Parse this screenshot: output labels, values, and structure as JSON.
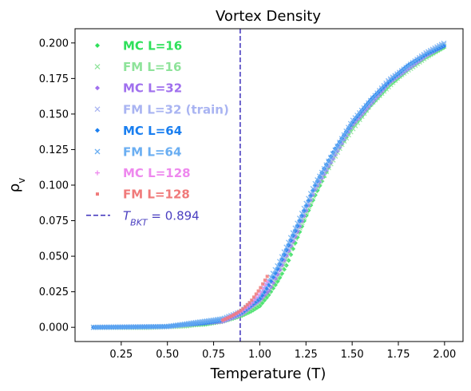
{
  "chart_data": {
    "type": "scatter",
    "title": "Vortex Density",
    "xlabel": "Temperature (T)",
    "ylabel": "ρ_v",
    "xlim": [
      0.0,
      2.1
    ],
    "ylim": [
      -0.01,
      0.21
    ],
    "xticks": [
      "0.25",
      "0.50",
      "0.75",
      "1.00",
      "1.25",
      "1.50",
      "1.75",
      "2.00"
    ],
    "xtick_values": [
      0.25,
      0.5,
      0.75,
      1.0,
      1.25,
      1.5,
      1.75,
      2.0
    ],
    "yticks": [
      "0.000",
      "0.025",
      "0.050",
      "0.075",
      "0.100",
      "0.125",
      "0.150",
      "0.175",
      "0.200"
    ],
    "ytick_values": [
      0.0,
      0.025,
      0.05,
      0.075,
      0.1,
      0.125,
      0.15,
      0.175,
      0.2
    ],
    "legend_placement": "upper-left",
    "vline": {
      "x": 0.894,
      "label": "T_BKT = 0.894",
      "color": "#4a3fc0"
    },
    "series": [
      {
        "name": "MC L=16",
        "marker": "diamond",
        "color": "#2ee05a",
        "points": [
          [
            0.1,
            0
          ],
          [
            0.3,
            0
          ],
          [
            0.5,
            0.0005
          ],
          [
            0.7,
            0.002
          ],
          [
            0.8,
            0.004
          ],
          [
            0.9,
            0.008
          ],
          [
            0.95,
            0.011
          ],
          [
            1.0,
            0.015
          ],
          [
            1.05,
            0.023
          ],
          [
            1.1,
            0.033
          ],
          [
            1.15,
            0.045
          ],
          [
            1.2,
            0.062
          ],
          [
            1.25,
            0.078
          ],
          [
            1.3,
            0.093
          ],
          [
            1.4,
            0.12
          ],
          [
            1.5,
            0.14
          ],
          [
            1.6,
            0.156
          ],
          [
            1.7,
            0.17
          ],
          [
            1.8,
            0.181
          ],
          [
            1.9,
            0.19
          ],
          [
            2.0,
            0.197
          ]
        ]
      },
      {
        "name": "FM L=16",
        "marker": "x",
        "color": "#8ee39a",
        "points": [
          [
            0.1,
            0
          ],
          [
            0.4,
            0
          ],
          [
            0.6,
            0.001
          ],
          [
            0.8,
            0.005
          ],
          [
            0.9,
            0.009
          ],
          [
            1.0,
            0.017
          ],
          [
            1.1,
            0.035
          ],
          [
            1.2,
            0.065
          ],
          [
            1.3,
            0.096
          ],
          [
            1.45,
            0.13
          ],
          [
            1.6,
            0.157
          ],
          [
            1.75,
            0.176
          ],
          [
            1.9,
            0.19
          ],
          [
            2.0,
            0.198
          ]
        ]
      },
      {
        "name": "MC L=32",
        "marker": "diamond",
        "color": "#a070ee",
        "points": [
          [
            0.1,
            0
          ],
          [
            0.5,
            0.0005
          ],
          [
            0.8,
            0.004
          ],
          [
            0.9,
            0.009
          ],
          [
            1.0,
            0.019
          ],
          [
            1.05,
            0.026
          ],
          [
            1.1,
            0.038
          ],
          [
            1.2,
            0.066
          ],
          [
            1.3,
            0.097
          ],
          [
            1.5,
            0.142
          ],
          [
            1.7,
            0.172
          ],
          [
            1.9,
            0.191
          ],
          [
            2.0,
            0.198
          ]
        ]
      },
      {
        "name": "FM L=32 (train)",
        "marker": "x",
        "color": "#a9b4f2",
        "points": [
          [
            0.1,
            0
          ],
          [
            0.5,
            0.0005
          ],
          [
            0.8,
            0.005
          ],
          [
            0.9,
            0.01
          ],
          [
            1.0,
            0.02
          ],
          [
            1.1,
            0.04
          ],
          [
            1.2,
            0.068
          ],
          [
            1.3,
            0.098
          ],
          [
            1.5,
            0.143
          ],
          [
            1.7,
            0.173
          ],
          [
            1.9,
            0.192
          ],
          [
            2.0,
            0.199
          ]
        ]
      },
      {
        "name": "MC L=64",
        "marker": "diamond",
        "color": "#1a7ff0",
        "points": [
          [
            0.1,
            0
          ],
          [
            0.3,
            0
          ],
          [
            0.5,
            0.0006
          ],
          [
            0.7,
            0.003
          ],
          [
            0.8,
            0.005
          ],
          [
            0.9,
            0.01
          ],
          [
            1.0,
            0.02
          ],
          [
            1.05,
            0.03
          ],
          [
            1.1,
            0.042
          ],
          [
            1.15,
            0.056
          ],
          [
            1.2,
            0.07
          ],
          [
            1.25,
            0.085
          ],
          [
            1.3,
            0.1
          ],
          [
            1.4,
            0.124
          ],
          [
            1.5,
            0.144
          ],
          [
            1.6,
            0.16
          ],
          [
            1.7,
            0.173
          ],
          [
            1.8,
            0.184
          ],
          [
            1.9,
            0.192
          ],
          [
            2.0,
            0.198
          ]
        ]
      },
      {
        "name": "FM L=64",
        "marker": "x",
        "color": "#6aaef2",
        "points": [
          [
            0.1,
            0
          ],
          [
            0.5,
            0.0006
          ],
          [
            0.8,
            0.006
          ],
          [
            0.9,
            0.011
          ],
          [
            1.0,
            0.022
          ],
          [
            1.1,
            0.044
          ],
          [
            1.2,
            0.072
          ],
          [
            1.3,
            0.101
          ],
          [
            1.5,
            0.145
          ],
          [
            1.7,
            0.174
          ],
          [
            1.9,
            0.193
          ],
          [
            2.0,
            0.2
          ]
        ]
      },
      {
        "name": "MC L=128",
        "marker": "plus",
        "color": "#ee88ee",
        "points": [
          [
            0.8,
            0.005
          ],
          [
            0.85,
            0.008
          ],
          [
            0.9,
            0.011
          ],
          [
            0.95,
            0.016
          ],
          [
            1.0,
            0.024
          ],
          [
            1.05,
            0.034
          ]
        ]
      },
      {
        "name": "FM L=128",
        "marker": "square",
        "color": "#f07a7a",
        "points": [
          [
            0.8,
            0.005
          ],
          [
            0.85,
            0.008
          ],
          [
            0.9,
            0.012
          ],
          [
            0.95,
            0.018
          ],
          [
            1.0,
            0.027
          ],
          [
            1.05,
            0.038
          ]
        ]
      }
    ]
  }
}
